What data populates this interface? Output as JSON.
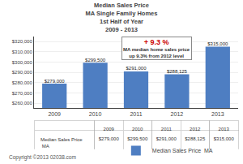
{
  "chart_data": {
    "type": "bar",
    "title": "Median Sales Price\nMA Single Family Homes\n1st Half of Year\n2009 - 2013",
    "categories": [
      "2009",
      "2010",
      "2011",
      "2012",
      "2013"
    ],
    "series": [
      {
        "name": "Median Sales Price  MA",
        "color": "#4E7EC2",
        "values": [
          279000,
          299500,
          291000,
          288125,
          315000
        ],
        "value_labels": [
          "$279,000",
          "$299,500",
          "$291,000",
          "$288,125",
          "$315,000"
        ]
      }
    ],
    "ylim": [
      255000,
      325000
    ],
    "yticks": [
      {
        "value": 260000,
        "label": "$260,000"
      },
      {
        "value": 270000,
        "label": "$270,000"
      },
      {
        "value": 280000,
        "label": "$280,000"
      },
      {
        "value": 290000,
        "label": "$290,000"
      },
      {
        "value": 300000,
        "label": "$300,000"
      },
      {
        "value": 310000,
        "label": "$310,000"
      },
      {
        "value": 320000,
        "label": "$320,000"
      }
    ],
    "grid": true,
    "data_labels": true,
    "legend": "bottom",
    "annotations": [
      {
        "text": "+ 9.3 %",
        "color": "#CC0000"
      },
      {
        "text": "MA median home sales price\nup 9.3% from 2012 level"
      }
    ],
    "table": {
      "row_label": "Median Sales Price  MA",
      "values": [
        "$279,000",
        "$299,500",
        "$291,000",
        "$288,125",
        "$315,000"
      ]
    },
    "copyright": "Copyright ©2013 02038.com"
  }
}
